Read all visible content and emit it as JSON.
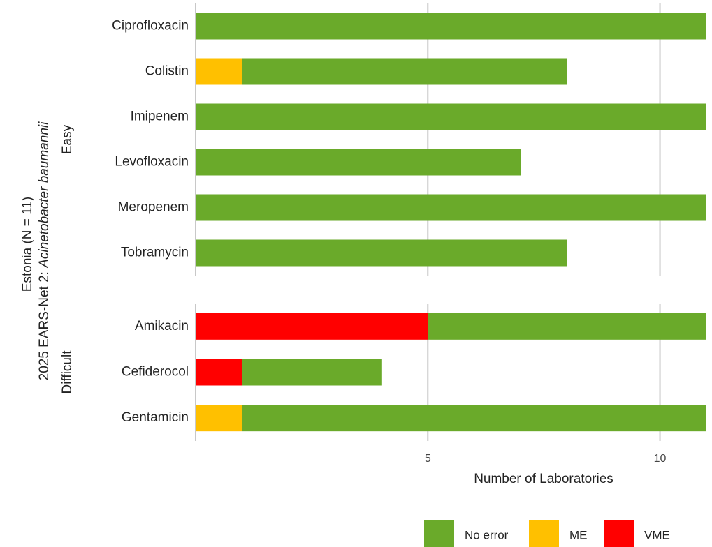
{
  "chart_data": {
    "type": "bar",
    "orientation": "horizontal",
    "stacked": true,
    "y_title_prefix": "2025 EARS-Net 2:",
    "y_title_species": "Acinetobacter baumannii",
    "y_title_line2": "Estonia (N = 11)",
    "x_title": "Number of Laboratories",
    "xlim": [
      0,
      11
    ],
    "xticks": [
      5,
      10
    ],
    "grid": true,
    "legend": "bottom",
    "series": [
      {
        "name": "No error",
        "color": "#6aaa2a"
      },
      {
        "name": "ME",
        "color": "#ffc000"
      },
      {
        "name": "VME",
        "color": "#ff0000"
      }
    ],
    "panels": [
      {
        "label": "Easy",
        "categories": [
          "Ciprofloxacin",
          "Colistin",
          "Imipenem",
          "Levofloxacin",
          "Meropenem",
          "Tobramycin"
        ],
        "values": [
          [
            11,
            7,
            11,
            7,
            11,
            8
          ],
          [
            0,
            1,
            0,
            0,
            0,
            0
          ],
          [
            0,
            0,
            0,
            0,
            0,
            0
          ]
        ]
      },
      {
        "label": "Difficult",
        "categories": [
          "Amikacin",
          "Cefiderocol",
          "Gentamicin"
        ],
        "values": [
          [
            6,
            3,
            10
          ],
          [
            0,
            0,
            1
          ],
          [
            5,
            1,
            0
          ]
        ]
      }
    ]
  }
}
